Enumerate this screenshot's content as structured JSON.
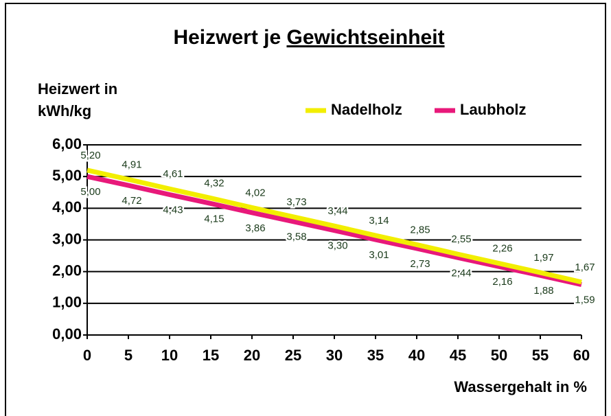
{
  "chart_data": {
    "type": "line",
    "title": "Heizwert je Gewichtseinheit",
    "y_label": [
      "Heizwert in",
      "kWh/kg"
    ],
    "x_label": "Wassergehalt in %",
    "x": [
      0,
      5,
      10,
      15,
      20,
      25,
      30,
      35,
      40,
      45,
      50,
      55,
      60
    ],
    "series": [
      {
        "name": "Nadelholz",
        "color": "#f2ee00",
        "values": [
          5.2,
          4.91,
          4.61,
          4.32,
          4.02,
          3.73,
          3.44,
          3.14,
          2.85,
          2.55,
          2.26,
          1.97,
          1.67
        ],
        "value_labels": [
          "5,20",
          "4,91",
          "4,61",
          "4,32",
          "4,02",
          "3,73",
          "3,44",
          "3,14",
          "2,85",
          "2,55",
          "2,26",
          "1,97",
          "1,67"
        ]
      },
      {
        "name": "Laubholz",
        "color": "#e8197a",
        "values": [
          5.0,
          4.72,
          4.43,
          4.15,
          3.86,
          3.58,
          3.3,
          3.01,
          2.73,
          2.44,
          2.16,
          1.88,
          1.59
        ],
        "value_labels": [
          "5,00",
          "4,72",
          "4,43",
          "4,15",
          "3,86",
          "3,58",
          "3,30",
          "3,01",
          "2,73",
          "2,44",
          "2,16",
          "1,88",
          "1,59"
        ]
      }
    ],
    "xlim": [
      0,
      60
    ],
    "xticks": [
      0,
      5,
      10,
      15,
      20,
      25,
      30,
      35,
      40,
      45,
      50,
      55,
      60
    ],
    "ylim": [
      0,
      6
    ],
    "yticks": [
      {
        "value": 0,
        "label": "0,00"
      },
      {
        "value": 1,
        "label": "1,00"
      },
      {
        "value": 2,
        "label": "2,00"
      },
      {
        "value": 3,
        "label": "3,00"
      },
      {
        "value": 4,
        "label": "4,00"
      },
      {
        "value": 5,
        "label": "5,00"
      },
      {
        "value": 6,
        "label": "6,00"
      }
    ],
    "grid": true,
    "legend": "top-right"
  }
}
